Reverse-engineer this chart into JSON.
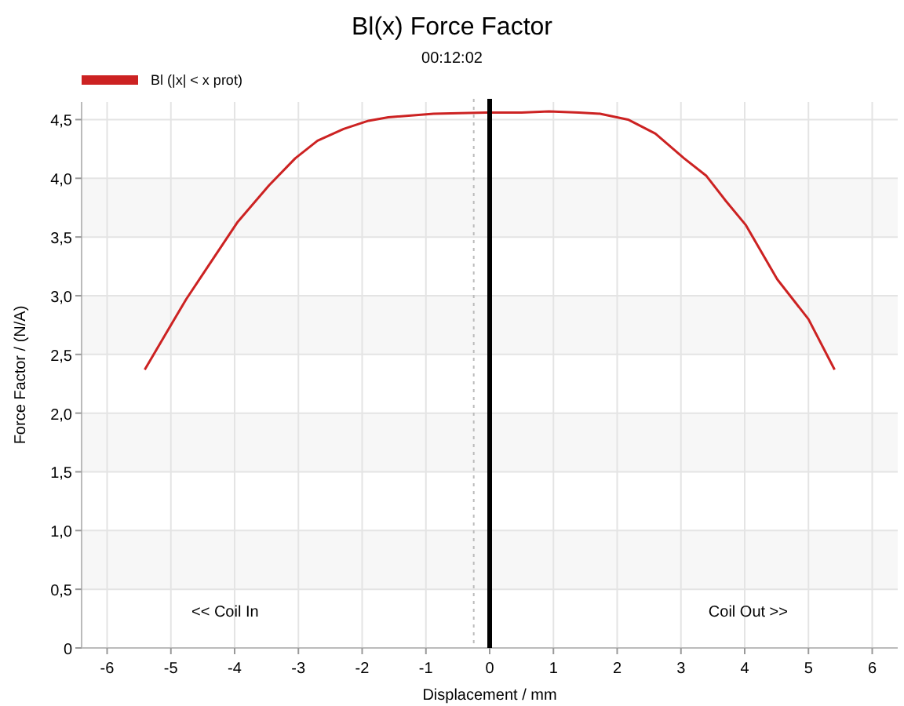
{
  "chart_data": {
    "type": "line",
    "title": "Bl(x) Force Factor",
    "subtitle": "00:12:02",
    "xlabel": "Displacement / mm",
    "ylabel": "Force Factor / (N/A)",
    "xlim": [
      -6.4,
      6.4
    ],
    "xticks": [
      -6,
      -5,
      -4,
      -3,
      -2,
      -1,
      0,
      1,
      2,
      3,
      4,
      5,
      6
    ],
    "ylim": [
      0,
      4.65
    ],
    "yticks": [
      0,
      {
        "value": 0.5,
        "label": "0,5"
      },
      {
        "value": 1,
        "label": "1,0"
      },
      {
        "value": 1.5,
        "label": "1,5"
      },
      {
        "value": 2,
        "label": "2,0"
      },
      {
        "value": 2.5,
        "label": "2,5"
      },
      {
        "value": 3,
        "label": "3,0"
      },
      {
        "value": 3.5,
        "label": "3,5"
      },
      {
        "value": 4,
        "label": "4,0"
      },
      {
        "value": 4.5,
        "label": "4,5"
      }
    ],
    "grid": true,
    "legend": "top left",
    "marker": "none",
    "line_style": "solid",
    "series": [
      {
        "name": "Bl (|x| < x prot)",
        "color": "#cc2222",
        "x": [
          -5.41,
          -5.0,
          -4.76,
          -4.27,
          -3.95,
          -3.46,
          -3.05,
          -2.7,
          -2.29,
          -1.9,
          -1.59,
          -0.88,
          -0.06,
          0.5,
          0.93,
          1.4,
          1.73,
          2.17,
          2.6,
          3.05,
          3.4,
          3.7,
          4.02,
          4.51,
          5.0,
          5.41
        ],
        "values": [
          2.37,
          2.75,
          2.97,
          3.37,
          3.63,
          3.94,
          4.17,
          4.32,
          4.42,
          4.49,
          4.52,
          4.55,
          4.56,
          4.56,
          4.57,
          4.56,
          4.55,
          4.5,
          4.38,
          4.17,
          4.02,
          3.81,
          3.6,
          3.14,
          2.8,
          2.37
        ]
      }
    ],
    "ref_lines": [
      {
        "axis": "x",
        "value": 0,
        "color": "#000000",
        "line_style": "solid"
      },
      {
        "axis": "x",
        "value": -0.25,
        "color": "#bbbbbb",
        "line_style": "dotted"
      }
    ],
    "annotations": [
      "<< Coil In",
      "Coil Out >>"
    ]
  }
}
